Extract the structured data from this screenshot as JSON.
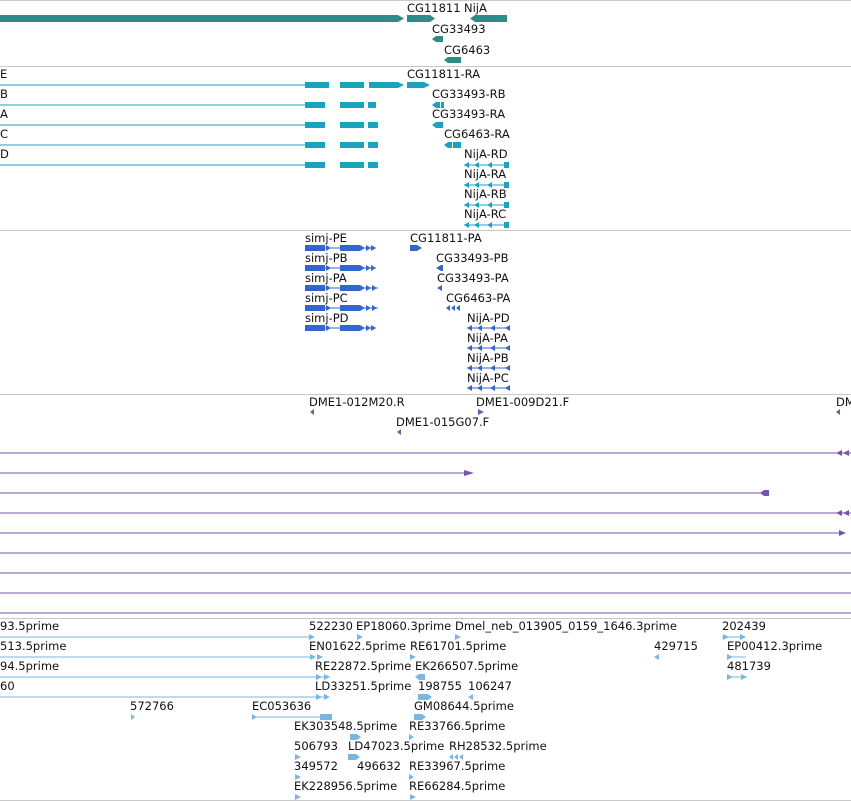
{
  "colors": {
    "gene": "#2e8b86",
    "mrna": "#1aa3c0",
    "cds": "#3366cc",
    "clone": "#7755aa",
    "est": "#7ab6e0",
    "separator": "#c8c8c8"
  },
  "tracks": {
    "gene": {
      "labels": [
        "CG11811",
        "NijA",
        "CG33493",
        "CG6463"
      ]
    },
    "mrna": {
      "left_labels": [
        "E",
        "B",
        "A",
        "C",
        "D"
      ],
      "labels": [
        "CG11811-RA",
        "CG33493-RB",
        "CG33493-RA",
        "CG6463-RA",
        "NijA-RD",
        "NijA-RA",
        "NijA-RB",
        "NijA-RC"
      ]
    },
    "cds": {
      "labels": [
        "simj-PE",
        "simj-PB",
        "simj-PA",
        "simj-PC",
        "simj-PD",
        "CG11811-PA",
        "CG33493-PB",
        "CG33493-PA",
        "CG6463-PA",
        "NijA-PD",
        "NijA-PA",
        "NijA-PB",
        "NijA-PC"
      ]
    },
    "clones": {
      "labels": [
        "DME1-012M20.R",
        "DME1-009D21.F",
        "DME1-015G07.F",
        "DM"
      ]
    },
    "est": {
      "labels": [
        "93.5prime",
        "522230",
        "EP18060.3prime",
        "Dmel_neb_013905_0159_1646.3prime",
        "202439",
        "513.5prime",
        "EN01622.5prime",
        "RE61701.5prime",
        "429715",
        "EP00412.3prime",
        "94.5prime",
        "RE22872.5prime",
        "EK266507.5prime",
        "481739",
        "60",
        "LD33251.5prime",
        "198755",
        "106247",
        "572766",
        "EC053636",
        "GM08644.5prime",
        "EK303548.5prime",
        "RE33766.5prime",
        "506793",
        "LD47023.5prime",
        "RH28532.5prime",
        "349572",
        "496632",
        "RE33967.5prime",
        "EK228956.5prime",
        "RE66284.5prime"
      ]
    }
  }
}
